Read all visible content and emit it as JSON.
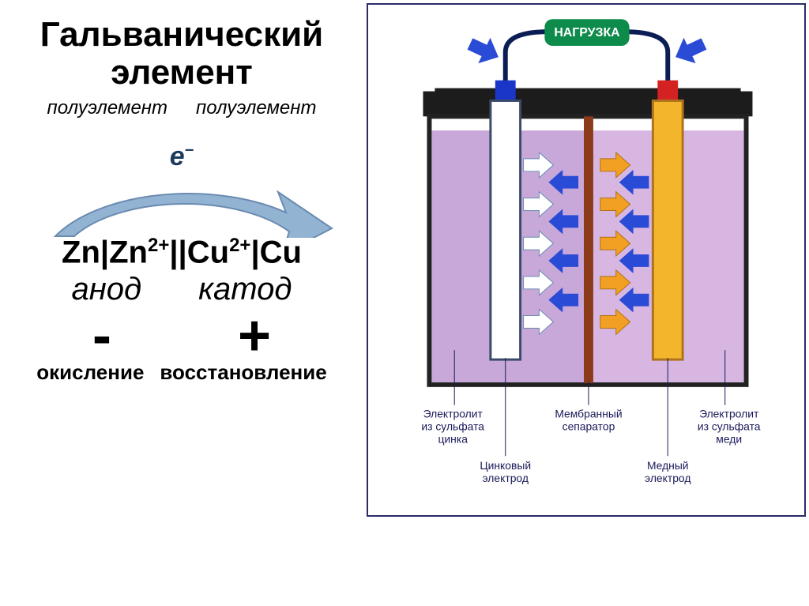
{
  "title_line1": "Гальванический",
  "title_line2": "элемент",
  "half_element": "полуэлемент",
  "electron_symbol": "e",
  "electron_charge": "−",
  "notation_html": "Zn|Zn<sup>2+</sup>||Cu<sup>2+</sup>|Cu",
  "anode": "анод",
  "cathode": "катод",
  "minus": "-",
  "plus": "+",
  "oxidation": "окисление",
  "reduction": "восстановление",
  "arrow": {
    "band_color": "#93b3d3",
    "stroke_color": "#6a8bb0",
    "stroke_width": 2
  },
  "diagram": {
    "load_label": "НАГРУЗКА",
    "load_bg": "#0c8b4a",
    "load_text_color": "#ffffff",
    "container_stroke": "#222",
    "container_stroke_width": 6,
    "lid_color": "#1c1c1c",
    "lid_height": 32,
    "left_solution_color": "#c8a7d9",
    "right_solution_color": "#d7b6e2",
    "separator_color": "#8b3a1a",
    "zn_electrode_fill": "#ffffff",
    "zn_electrode_stroke": "#3a4a6a",
    "cu_electrode_fill": "#f2b52c",
    "cu_electrode_stroke": "#b0731d",
    "terminal_left_color": "#1a36c9",
    "terminal_right_color": "#d42222",
    "wire_color": "#0b1d55",
    "arrow_white": "#ffffff",
    "arrow_blue": "#2a4bd6",
    "arrow_orange": "#f2a024",
    "labels": {
      "electrolyte_zn_l1": "Электролит",
      "electrolyte_zn_l2": "из сульфата",
      "electrolyte_zn_l3": "цинка",
      "separator_l1": "Мембранный",
      "separator_l2": "сепаратор",
      "electrolyte_cu_l1": "Электролит",
      "electrolyte_cu_l2": "из сульфата",
      "electrolyte_cu_l3": "меди",
      "zn_electrode_l1": "Цинковый",
      "zn_electrode_l2": "электрод",
      "cu_electrode_l1": "Медный",
      "cu_electrode_l2": "электрод"
    }
  }
}
